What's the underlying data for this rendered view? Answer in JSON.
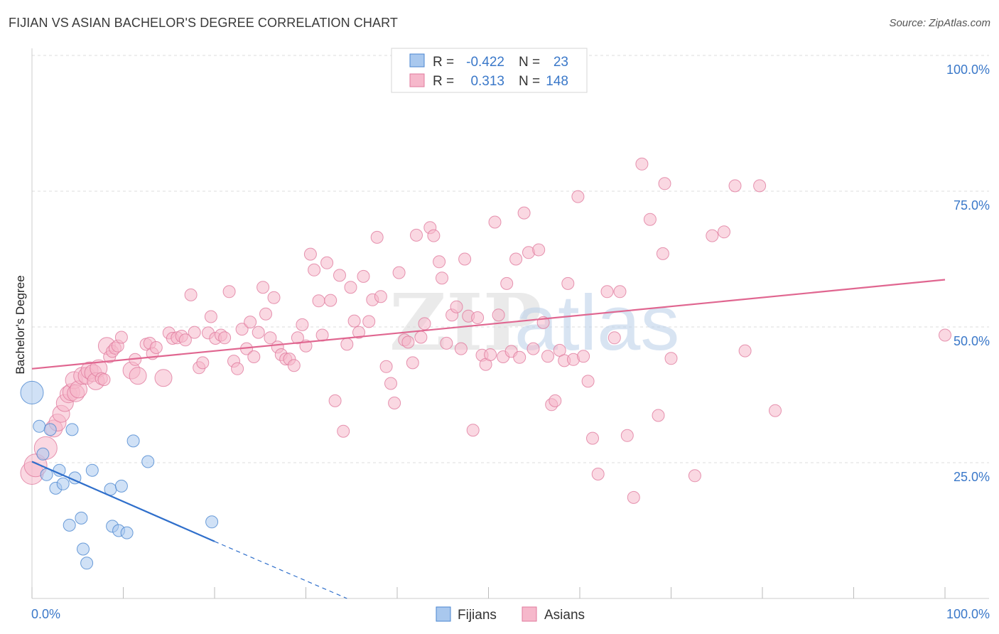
{
  "title": "FIJIAN VS ASIAN BACHELOR'S DEGREE CORRELATION CHART",
  "source": "Source: ZipAtlas.com",
  "watermark": {
    "zip": "ZIP",
    "atlas": "atlas"
  },
  "legend_stats": {
    "fijians": {
      "r_label": "R =",
      "r_value": "-0.422",
      "n_label": "N =",
      "n_value": "23"
    },
    "asians": {
      "r_label": "R =",
      "r_value": "0.313",
      "n_label": "N =",
      "n_value": "148"
    }
  },
  "bottom_legend": {
    "fijians": "Fijians",
    "asians": "Asians"
  },
  "colors": {
    "fijians_fill": "#a9c8ee",
    "fijians_stroke": "#4a86d0",
    "fijians_line": "#2f6fcb",
    "asians_fill": "#f6b8cb",
    "asians_stroke": "#e07a9e",
    "asians_line": "#e06690",
    "tick_label": "#3a78c9",
    "grid": "#dddddd"
  },
  "chart_data": {
    "type": "scatter",
    "title": "FIJIAN VS ASIAN BACHELOR'S DEGREE CORRELATION CHART",
    "xlabel": "",
    "ylabel": "Bachelor's Degree",
    "xlim": [
      0,
      100
    ],
    "ylim": [
      0,
      100
    ],
    "x_tick_labels": [
      "0.0%",
      "100.0%"
    ],
    "y_ticks": [
      25,
      50,
      75,
      100
    ],
    "y_tick_labels": [
      "25.0%",
      "50.0%",
      "75.0%",
      "100.0%"
    ],
    "grid": true,
    "series": [
      {
        "name": "Fijians",
        "r": -0.422,
        "n": 23,
        "trend": {
          "x0": 0,
          "y0": 25.2,
          "x1": 20,
          "y1": 10.5,
          "dash_to_x": 34.5,
          "dash_to_y": 0
        },
        "points": [
          [
            0,
            37.9,
            3
          ],
          [
            0.8,
            31.7,
            1
          ],
          [
            1.2,
            26.6,
            1
          ],
          [
            1.6,
            22.8,
            1
          ],
          [
            2.0,
            31.1,
            1
          ],
          [
            2.6,
            20.3,
            1
          ],
          [
            3.0,
            23.6,
            1
          ],
          [
            3.4,
            21.1,
            1
          ],
          [
            4.1,
            13.5,
            1
          ],
          [
            4.4,
            31.1,
            1
          ],
          [
            4.7,
            22.2,
            1
          ],
          [
            5.4,
            14.8,
            1
          ],
          [
            5.6,
            9.1,
            1
          ],
          [
            6.0,
            6.5,
            1
          ],
          [
            6.6,
            23.6,
            1
          ],
          [
            8.6,
            20.1,
            1
          ],
          [
            8.8,
            13.3,
            1
          ],
          [
            9.5,
            12.5,
            1
          ],
          [
            9.8,
            20.7,
            1
          ],
          [
            10.4,
            12.1,
            1
          ],
          [
            11.1,
            29.0,
            1
          ],
          [
            12.7,
            25.2,
            1
          ],
          [
            19.7,
            14.1,
            1
          ]
        ]
      },
      {
        "name": "Asians",
        "r": 0.313,
        "n": 148,
        "trend": {
          "x0": 0,
          "y0": 42.3,
          "x1": 100,
          "y1": 58.7
        },
        "points": [
          [
            0,
            23.1,
            3
          ],
          [
            0.4,
            24.5,
            3
          ],
          [
            1.5,
            27.7,
            3
          ],
          [
            2.4,
            31.3,
            2
          ],
          [
            2.8,
            32.4,
            2
          ],
          [
            3.2,
            34.0,
            2
          ],
          [
            3.6,
            36.0,
            2
          ],
          [
            4.0,
            37.6,
            2
          ],
          [
            4.3,
            38.0,
            2
          ],
          [
            4.6,
            40.2,
            2
          ],
          [
            4.8,
            37.8,
            2
          ],
          [
            5.1,
            38.5,
            2
          ],
          [
            5.5,
            41.0,
            2
          ],
          [
            6.0,
            41.0,
            2
          ],
          [
            6.3,
            42.0,
            2
          ],
          [
            6.7,
            41.5,
            2
          ],
          [
            7.0,
            40.0,
            2
          ],
          [
            7.3,
            42.4,
            2
          ],
          [
            7.6,
            40.5,
            1
          ],
          [
            7.9,
            40.3,
            1
          ],
          [
            8.2,
            46.5,
            2
          ],
          [
            8.5,
            44.5,
            1
          ],
          [
            8.8,
            45.5,
            1
          ],
          [
            9.1,
            46.1,
            1
          ],
          [
            9.4,
            46.5,
            1
          ],
          [
            9.8,
            48.1,
            1
          ],
          [
            10.9,
            42.0,
            2
          ],
          [
            11.3,
            44.0,
            1
          ],
          [
            11.6,
            41.0,
            2
          ],
          [
            12.5,
            46.8,
            1
          ],
          [
            12.9,
            47.0,
            1
          ],
          [
            13.2,
            45.1,
            1
          ],
          [
            13.6,
            46.2,
            1
          ],
          [
            14.4,
            40.6,
            2
          ],
          [
            15.0,
            48.9,
            1
          ],
          [
            15.4,
            47.9,
            1
          ],
          [
            15.9,
            48.0,
            1
          ],
          [
            16.4,
            48.3,
            1
          ],
          [
            16.8,
            47.6,
            1
          ],
          [
            17.4,
            55.9,
            1
          ],
          [
            17.8,
            49.0,
            1
          ],
          [
            18.3,
            42.5,
            1
          ],
          [
            18.7,
            43.4,
            1
          ],
          [
            19.3,
            48.9,
            1
          ],
          [
            19.6,
            51.9,
            1
          ],
          [
            20.1,
            47.9,
            1
          ],
          [
            20.7,
            48.5,
            1
          ],
          [
            21.1,
            48.0,
            1
          ],
          [
            21.6,
            56.5,
            1
          ],
          [
            22.1,
            43.7,
            1
          ],
          [
            22.5,
            42.3,
            1
          ],
          [
            23.0,
            49.6,
            1
          ],
          [
            23.5,
            46.0,
            1
          ],
          [
            23.9,
            50.9,
            1
          ],
          [
            24.3,
            44.5,
            1
          ],
          [
            24.8,
            49.0,
            1
          ],
          [
            25.3,
            57.3,
            1
          ],
          [
            25.6,
            52.4,
            1
          ],
          [
            26.1,
            48.0,
            1
          ],
          [
            26.5,
            55.4,
            1
          ],
          [
            26.9,
            46.3,
            1
          ],
          [
            27.3,
            44.9,
            1
          ],
          [
            27.8,
            44.1,
            1
          ],
          [
            28.2,
            44.1,
            1
          ],
          [
            28.7,
            42.9,
            1
          ],
          [
            29.1,
            48.0,
            1
          ],
          [
            29.6,
            50.4,
            1
          ],
          [
            30.0,
            46.5,
            1
          ],
          [
            30.5,
            63.4,
            1
          ],
          [
            30.9,
            60.5,
            1
          ],
          [
            31.4,
            54.8,
            1
          ],
          [
            31.8,
            48.5,
            1
          ],
          [
            32.3,
            61.8,
            1
          ],
          [
            32.7,
            54.9,
            1
          ],
          [
            33.2,
            36.4,
            1
          ],
          [
            33.7,
            59.5,
            1
          ],
          [
            34.1,
            30.8,
            1
          ],
          [
            34.5,
            46.8,
            1
          ],
          [
            34.9,
            57.3,
            1
          ],
          [
            35.3,
            51.1,
            1
          ],
          [
            35.8,
            49.0,
            1
          ],
          [
            36.3,
            59.3,
            1
          ],
          [
            36.9,
            51.0,
            1
          ],
          [
            37.3,
            55.0,
            1
          ],
          [
            37.8,
            66.5,
            1
          ],
          [
            38.2,
            55.6,
            1
          ],
          [
            38.8,
            42.7,
            1
          ],
          [
            39.3,
            39.6,
            1
          ],
          [
            39.7,
            36.0,
            1
          ],
          [
            40.2,
            60.0,
            1
          ],
          [
            40.8,
            47.6,
            1
          ],
          [
            41.2,
            47.2,
            1
          ],
          [
            41.7,
            43.4,
            1
          ],
          [
            42.1,
            66.9,
            1
          ],
          [
            42.6,
            48.1,
            1
          ],
          [
            43.0,
            50.6,
            1
          ],
          [
            43.6,
            68.3,
            1
          ],
          [
            44.0,
            66.8,
            1
          ],
          [
            44.6,
            62.0,
            1
          ],
          [
            44.9,
            59.0,
            1
          ],
          [
            45.4,
            47.0,
            1
          ],
          [
            46.0,
            52.2,
            1
          ],
          [
            46.5,
            53.7,
            1
          ],
          [
            47.0,
            46.0,
            1
          ],
          [
            47.4,
            62.5,
            1
          ],
          [
            47.8,
            52.0,
            1
          ],
          [
            48.3,
            31.0,
            1
          ],
          [
            48.8,
            51.7,
            1
          ],
          [
            49.3,
            44.8,
            1
          ],
          [
            49.7,
            43.1,
            1
          ],
          [
            50.2,
            44.9,
            1
          ],
          [
            50.7,
            69.3,
            1
          ],
          [
            51.1,
            52.2,
            1
          ],
          [
            51.6,
            44.5,
            1
          ],
          [
            52.0,
            58.0,
            1
          ],
          [
            52.5,
            45.5,
            1
          ],
          [
            53.0,
            62.5,
            1
          ],
          [
            53.4,
            44.4,
            1
          ],
          [
            53.9,
            71.0,
            1
          ],
          [
            54.4,
            63.7,
            1
          ],
          [
            54.9,
            46.0,
            1
          ],
          [
            55.5,
            64.2,
            1
          ],
          [
            56.0,
            50.8,
            1
          ],
          [
            56.5,
            44.6,
            1
          ],
          [
            56.9,
            35.7,
            1
          ],
          [
            57.3,
            36.4,
            1
          ],
          [
            57.8,
            45.7,
            1
          ],
          [
            58.3,
            43.8,
            1
          ],
          [
            58.7,
            58.0,
            1
          ],
          [
            59.3,
            44.0,
            1
          ],
          [
            59.8,
            74.0,
            1
          ],
          [
            60.4,
            44.6,
            1
          ],
          [
            60.9,
            40.0,
            1
          ],
          [
            61.4,
            29.5,
            1
          ],
          [
            62.0,
            22.9,
            1
          ],
          [
            63.0,
            56.5,
            1
          ],
          [
            63.8,
            48.0,
            1
          ],
          [
            64.4,
            56.5,
            1
          ],
          [
            65.2,
            30.0,
            1
          ],
          [
            65.9,
            18.6,
            1
          ],
          [
            66.8,
            80.0,
            1
          ],
          [
            67.7,
            69.8,
            1
          ],
          [
            68.6,
            33.7,
            1
          ],
          [
            69.1,
            63.5,
            1
          ],
          [
            69.3,
            76.4,
            1
          ],
          [
            70.0,
            44.2,
            1
          ],
          [
            72.6,
            22.6,
            1
          ],
          [
            74.5,
            66.8,
            1
          ],
          [
            75.8,
            67.5,
            1
          ],
          [
            77.0,
            76.0,
            1
          ],
          [
            78.1,
            45.6,
            1
          ],
          [
            79.7,
            76.0,
            1
          ],
          [
            81.4,
            34.6,
            1
          ],
          [
            100,
            48.5,
            1
          ]
        ]
      }
    ]
  }
}
